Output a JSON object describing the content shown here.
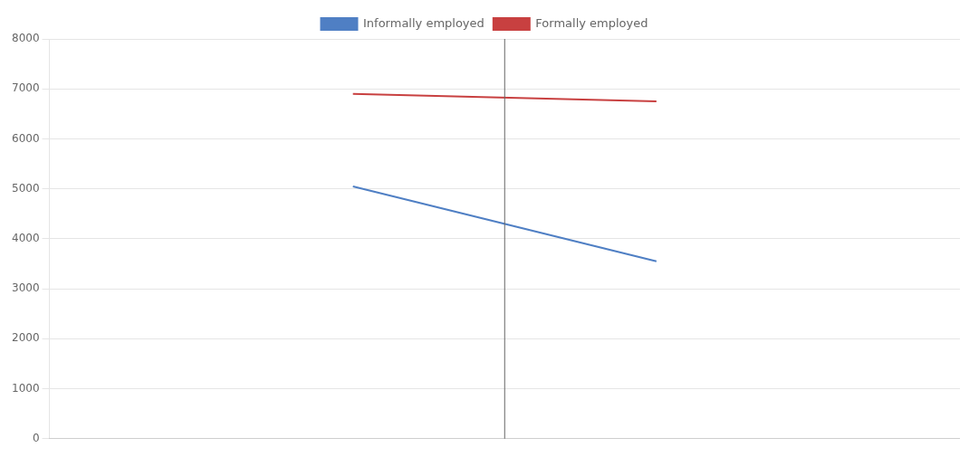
{
  "chart_data": {
    "type": "line",
    "x": [
      1,
      2
    ],
    "series": [
      {
        "name": "Informally employed",
        "color": "#4f7fc4",
        "values": [
          5050,
          3550
        ]
      },
      {
        "name": "Formally employed",
        "color": "#c84040",
        "values": [
          6900,
          6750
        ]
      }
    ],
    "xlim": [
      0,
      3
    ],
    "ylim": [
      0,
      8000
    ],
    "yticks": [
      0,
      1000,
      2000,
      3000,
      4000,
      5000,
      6000,
      7000,
      8000
    ],
    "vlines": [
      {
        "x": 1.5,
        "color": "#666666"
      }
    ],
    "grid": "y",
    "legend": "top",
    "tick_labels": "y"
  }
}
